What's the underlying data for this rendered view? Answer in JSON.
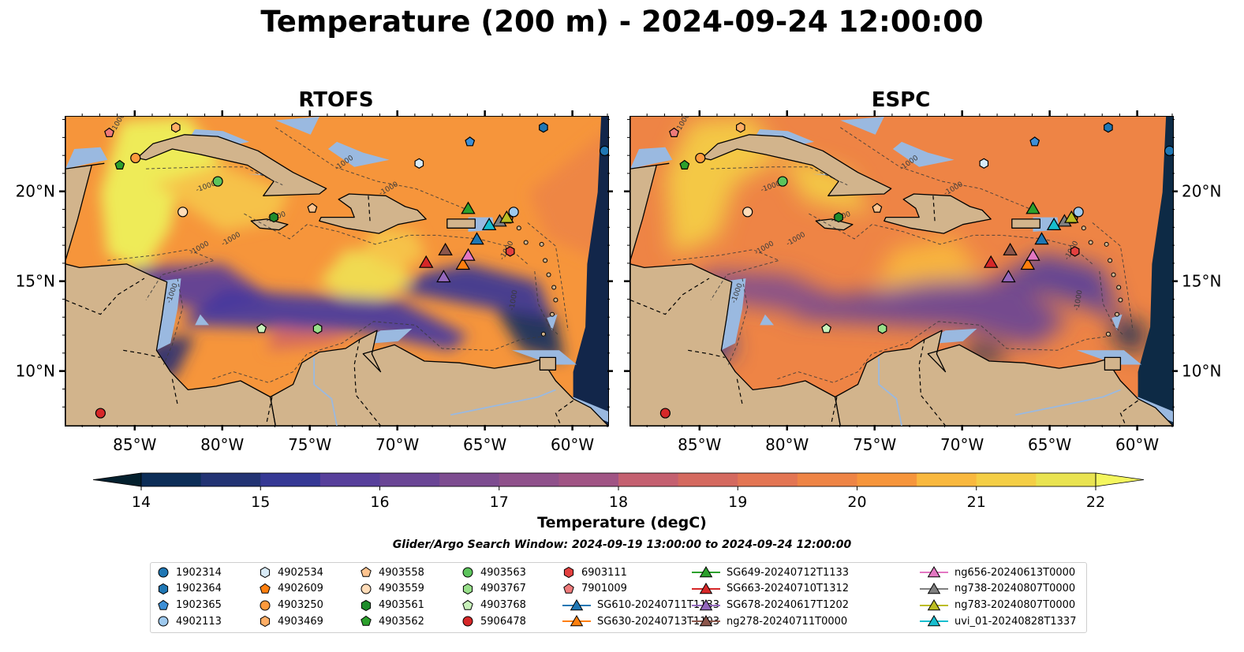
{
  "suptitle": "Temperature (200 m) - 2024-09-24 12:00:00",
  "panels": [
    {
      "title": "RTOFS"
    },
    {
      "title": "ESPC"
    }
  ],
  "axes": {
    "lon_ticks": [
      "85°W",
      "80°W",
      "75°W",
      "70°W",
      "65°W",
      "60°W"
    ],
    "lon_values": [
      -85,
      -80,
      -75,
      -70,
      -65,
      -60
    ],
    "lat_ticks": [
      "20°N",
      "15°N",
      "10°N"
    ],
    "lat_values": [
      20,
      15,
      10
    ],
    "lon_range": [
      -89,
      -58
    ],
    "lat_range": [
      7,
      24.2
    ],
    "isobath_label": "-1000"
  },
  "colorbar": {
    "label": "Temperature (degC)",
    "ticks": [
      "14",
      "15",
      "16",
      "17",
      "18",
      "19",
      "20",
      "21",
      "22"
    ],
    "range": [
      14,
      22
    ],
    "extend": "both",
    "colors": [
      "#04202e",
      "#0c2d57",
      "#223373",
      "#353894",
      "#463a9e",
      "#573f9b",
      "#6a4595",
      "#7d4c90",
      "#8f518b",
      "#a05484",
      "#b2597b",
      "#c46070",
      "#d4695f",
      "#e37553",
      "#ee8445",
      "#f6953b",
      "#f9a53a",
      "#f9b83e",
      "#f4ce45",
      "#e9e351",
      "#f4f65e"
    ]
  },
  "search_window": "Glider/Argo Search Window: 2024-09-19 13:00:00 to 2024-09-24 12:00:00",
  "land_color": "#d2b48c",
  "shelf_color": "#9ab9e0",
  "legend": {
    "items": [
      {
        "label": "1902314",
        "marker": "circle",
        "color": "#1f77b4"
      },
      {
        "label": "1902364",
        "marker": "hexagon",
        "color": "#1f77b4"
      },
      {
        "label": "1902365",
        "marker": "pentagon",
        "color": "#3d8fd6"
      },
      {
        "label": "4902113",
        "marker": "circle",
        "color": "#9ec9ee"
      },
      {
        "label": "4902534",
        "marker": "hexagon",
        "color": "#d8ebf8"
      },
      {
        "label": "4902609",
        "marker": "pentagon",
        "color": "#ff7f0e"
      },
      {
        "label": "4903250",
        "marker": "circle",
        "color": "#ff9a3c"
      },
      {
        "label": "4903469",
        "marker": "hexagon",
        "color": "#ffae66"
      },
      {
        "label": "4903558",
        "marker": "pentagon",
        "color": "#ffc48f"
      },
      {
        "label": "4903559",
        "marker": "circle",
        "color": "#ffdcb8"
      },
      {
        "label": "4903561",
        "marker": "hexagon",
        "color": "#1f8c2c"
      },
      {
        "label": "4903562",
        "marker": "pentagon",
        "color": "#2ca02c"
      },
      {
        "label": "4903563",
        "marker": "circle",
        "color": "#5cc45c"
      },
      {
        "label": "4903767",
        "marker": "hexagon",
        "color": "#98df8a"
      },
      {
        "label": "4903768",
        "marker": "pentagon",
        "color": "#c9f2bb"
      },
      {
        "label": "5906478",
        "marker": "circle",
        "color": "#d62728"
      },
      {
        "label": "6903111",
        "marker": "hexagon",
        "color": "#e3403f"
      },
      {
        "label": "7901009",
        "marker": "pentagon",
        "color": "#ee7a7a"
      },
      {
        "label": "SG610-20240711T1133",
        "marker": "triangle",
        "color": "#1f77b4"
      },
      {
        "label": "SG630-20240713T1103",
        "marker": "triangle",
        "color": "#ff7f0e"
      },
      {
        "label": "SG649-20240712T1133",
        "marker": "triangle",
        "color": "#2ca02c"
      },
      {
        "label": "SG663-20240710T1312",
        "marker": "triangle",
        "color": "#d62728"
      },
      {
        "label": "SG678-20240617T1202",
        "marker": "triangle",
        "color": "#9467bd"
      },
      {
        "label": "ng278-20240711T0000",
        "marker": "triangle",
        "color": "#8c564b"
      },
      {
        "label": "ng656-20240613T0000",
        "marker": "triangle",
        "color": "#e377c2"
      },
      {
        "label": "ng738-20240807T0000",
        "marker": "triangle",
        "color": "#7f7f7f"
      },
      {
        "label": "ng783-20240807T0000",
        "marker": "triangle",
        "color": "#bcbd22"
      },
      {
        "label": "uvi_01-20240828T1337",
        "marker": "triangle",
        "color": "#17becf"
      }
    ]
  },
  "argo_floats": [
    {
      "id": "1902314",
      "lon": -58.2,
      "lat": 22.3
    },
    {
      "id": "1902364",
      "lon": -61.7,
      "lat": 23.6
    },
    {
      "id": "1902365",
      "lon": -65.9,
      "lat": 22.8
    },
    {
      "id": "4902113",
      "lon": -63.4,
      "lat": 18.9
    },
    {
      "id": "4902534",
      "lon": -68.8,
      "lat": 21.6
    },
    {
      "id": "4902609",
      "lon": -63.7,
      "lat": 18.5
    },
    {
      "id": "4903250",
      "lon": -85.0,
      "lat": 21.9
    },
    {
      "id": "4903469",
      "lon": -82.7,
      "lat": 23.6
    },
    {
      "id": "4903558",
      "lon": -74.9,
      "lat": 19.1
    },
    {
      "id": "4903559",
      "lon": -82.3,
      "lat": 18.9
    },
    {
      "id": "4903561",
      "lon": -77.1,
      "lat": 18.6
    },
    {
      "id": "4903562",
      "lon": -85.9,
      "lat": 21.5
    },
    {
      "id": "4903563",
      "lon": -80.3,
      "lat": 20.6
    },
    {
      "id": "4903767",
      "lon": -74.6,
      "lat": 12.4
    },
    {
      "id": "4903768",
      "lon": -77.8,
      "lat": 12.4
    },
    {
      "id": "5906478",
      "lon": -87.0,
      "lat": 7.7
    },
    {
      "id": "6903111",
      "lon": -63.6,
      "lat": 16.7
    },
    {
      "id": "7901009",
      "lon": -86.5,
      "lat": 23.3
    }
  ],
  "gliders": [
    {
      "id": "SG610-20240711T1133",
      "lon": -65.5,
      "lat": 17.4
    },
    {
      "id": "SG630-20240713T1103",
      "lon": -66.3,
      "lat": 16.0
    },
    {
      "id": "SG649-20240712T1133",
      "lon": -66.0,
      "lat": 19.1
    },
    {
      "id": "SG663-20240710T1312",
      "lon": -68.4,
      "lat": 16.1
    },
    {
      "id": "SG678-20240617T1202",
      "lon": -67.4,
      "lat": 15.3
    },
    {
      "id": "ng278-20240711T0000",
      "lon": -67.3,
      "lat": 16.8
    },
    {
      "id": "ng656-20240613T0000",
      "lon": -66.0,
      "lat": 16.5
    },
    {
      "id": "ng738-20240807T0000",
      "lon": -64.2,
      "lat": 18.4
    },
    {
      "id": "ng783-20240807T0000",
      "lon": -63.8,
      "lat": 18.6
    },
    {
      "id": "uvi_01-20240828T1337",
      "lon": -64.8,
      "lat": 18.2
    }
  ]
}
